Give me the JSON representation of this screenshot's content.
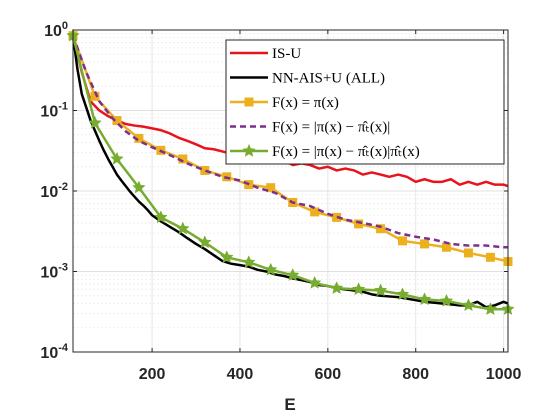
{
  "chart_data": {
    "type": "line",
    "xlabel": "E",
    "x_scale": "linear",
    "y_scale": "log",
    "xlim": [
      20,
      1010
    ],
    "ylim": [
      0.0001,
      1
    ],
    "x_ticks": [
      200,
      400,
      600,
      800,
      1000
    ],
    "x_tick_labels": [
      "200",
      "400",
      "600",
      "800",
      "1000"
    ],
    "y_ticks": [
      0.0001,
      0.001,
      0.01,
      0.1,
      1
    ],
    "y_tick_labels": [
      {
        "base": "10",
        "exp": "-4"
      },
      {
        "base": "10",
        "exp": "-3"
      },
      {
        "base": "10",
        "exp": "-2"
      },
      {
        "base": "10",
        "exp": "-1"
      },
      {
        "base": "10",
        "exp": "0"
      }
    ],
    "grid": true,
    "legend_position": "top-right",
    "series": [
      {
        "name": "IS-U",
        "color": "#e8141c",
        "marker": "none",
        "dashed": false,
        "x": [
          20,
          40,
          60,
          80,
          100,
          120,
          140,
          160,
          180,
          200,
          220,
          240,
          260,
          280,
          300,
          320,
          340,
          360,
          380,
          400,
          420,
          440,
          460,
          480,
          500,
          520,
          540,
          560,
          580,
          600,
          620,
          640,
          660,
          680,
          700,
          720,
          740,
          760,
          780,
          800,
          820,
          840,
          860,
          880,
          900,
          920,
          940,
          960,
          980,
          1000,
          1010
        ],
        "y": [
          0.85,
          0.3,
          0.13,
          0.1,
          0.085,
          0.075,
          0.068,
          0.065,
          0.063,
          0.06,
          0.057,
          0.052,
          0.046,
          0.042,
          0.038,
          0.034,
          0.033,
          0.031,
          0.029,
          0.03,
          0.03,
          0.026,
          0.027,
          0.024,
          0.024,
          0.021,
          0.022,
          0.021,
          0.019,
          0.02,
          0.018,
          0.019,
          0.018,
          0.016,
          0.017,
          0.016,
          0.015,
          0.016,
          0.015,
          0.013,
          0.014,
          0.013,
          0.013,
          0.014,
          0.012,
          0.013,
          0.012,
          0.013,
          0.012,
          0.012,
          0.0115
        ]
      },
      {
        "name": "NN-AIS+U (ALL)",
        "color": "#000000",
        "marker": "none",
        "dashed": false,
        "x": [
          20,
          30,
          40,
          50,
          60,
          70,
          80,
          90,
          100,
          110,
          120,
          130,
          140,
          150,
          160,
          170,
          180,
          190,
          200,
          220,
          240,
          260,
          280,
          300,
          320,
          340,
          360,
          380,
          400,
          420,
          440,
          460,
          480,
          500,
          520,
          540,
          560,
          580,
          600,
          620,
          640,
          660,
          680,
          700,
          720,
          740,
          760,
          780,
          800,
          820,
          840,
          860,
          880,
          900,
          920,
          940,
          960,
          980,
          1000,
          1010
        ],
        "y": [
          0.85,
          0.33,
          0.16,
          0.11,
          0.075,
          0.056,
          0.042,
          0.032,
          0.025,
          0.02,
          0.016,
          0.0135,
          0.0115,
          0.0098,
          0.0085,
          0.0074,
          0.0066,
          0.0058,
          0.005,
          0.0042,
          0.0036,
          0.0031,
          0.0026,
          0.0022,
          0.0019,
          0.0016,
          0.00135,
          0.00125,
          0.0012,
          0.00115,
          0.00105,
          0.001,
          0.00092,
          0.00088,
          0.00082,
          0.00078,
          0.00074,
          0.00068,
          0.00066,
          0.00062,
          0.0006,
          0.00058,
          0.00056,
          0.00052,
          0.0005,
          0.00049,
          0.00048,
          0.00046,
          0.00044,
          0.00042,
          0.00041,
          0.0004,
          0.00039,
          0.00038,
          0.00038,
          0.00042,
          0.00036,
          0.00038,
          0.00042,
          0.0004
        ]
      },
      {
        "name": "F(x) = π(x)",
        "color": "#ecb01f",
        "marker": "square",
        "dashed": false,
        "x": [
          20,
          70,
          120,
          170,
          220,
          270,
          320,
          370,
          420,
          470,
          520,
          570,
          620,
          670,
          720,
          770,
          820,
          870,
          920,
          970,
          1010
        ],
        "y": [
          0.85,
          0.15,
          0.075,
          0.045,
          0.032,
          0.025,
          0.018,
          0.015,
          0.012,
          0.011,
          0.0072,
          0.0055,
          0.0047,
          0.0039,
          0.0034,
          0.0024,
          0.0022,
          0.002,
          0.0017,
          0.0015,
          0.00133
        ]
      },
      {
        "name": "F(x) = |π(x) − π̂ₜ(x)|",
        "color": "#7e2f8e",
        "marker": "none",
        "dashed": true,
        "x": [
          20,
          50,
          80,
          110,
          140,
          170,
          200,
          240,
          280,
          320,
          360,
          400,
          440,
          480,
          520,
          560,
          600,
          640,
          680,
          720,
          760,
          800,
          840,
          880,
          920,
          960,
          1000,
          1010
        ],
        "y": [
          0.85,
          0.3,
          0.13,
          0.08,
          0.055,
          0.042,
          0.035,
          0.028,
          0.022,
          0.018,
          0.015,
          0.0135,
          0.011,
          0.0095,
          0.0072,
          0.0065,
          0.0052,
          0.0044,
          0.004,
          0.0036,
          0.003,
          0.0027,
          0.0025,
          0.0022,
          0.0021,
          0.0021,
          0.002,
          0.002
        ]
      },
      {
        "name": "F(x) = |π(x) − π̂ₜ(x)|π̂ₜ(x)",
        "color": "#77ac30",
        "marker": "star",
        "dashed": false,
        "x": [
          20,
          70,
          120,
          170,
          220,
          270,
          320,
          370,
          420,
          470,
          520,
          570,
          620,
          670,
          720,
          770,
          820,
          870,
          920,
          970,
          1010
        ],
        "y": [
          0.85,
          0.07,
          0.025,
          0.011,
          0.0047,
          0.0034,
          0.0023,
          0.0015,
          0.0013,
          0.00105,
          0.0009,
          0.00072,
          0.00062,
          0.0006,
          0.00058,
          0.00052,
          0.00045,
          0.00043,
          0.00038,
          0.00034,
          0.00034
        ]
      }
    ]
  }
}
